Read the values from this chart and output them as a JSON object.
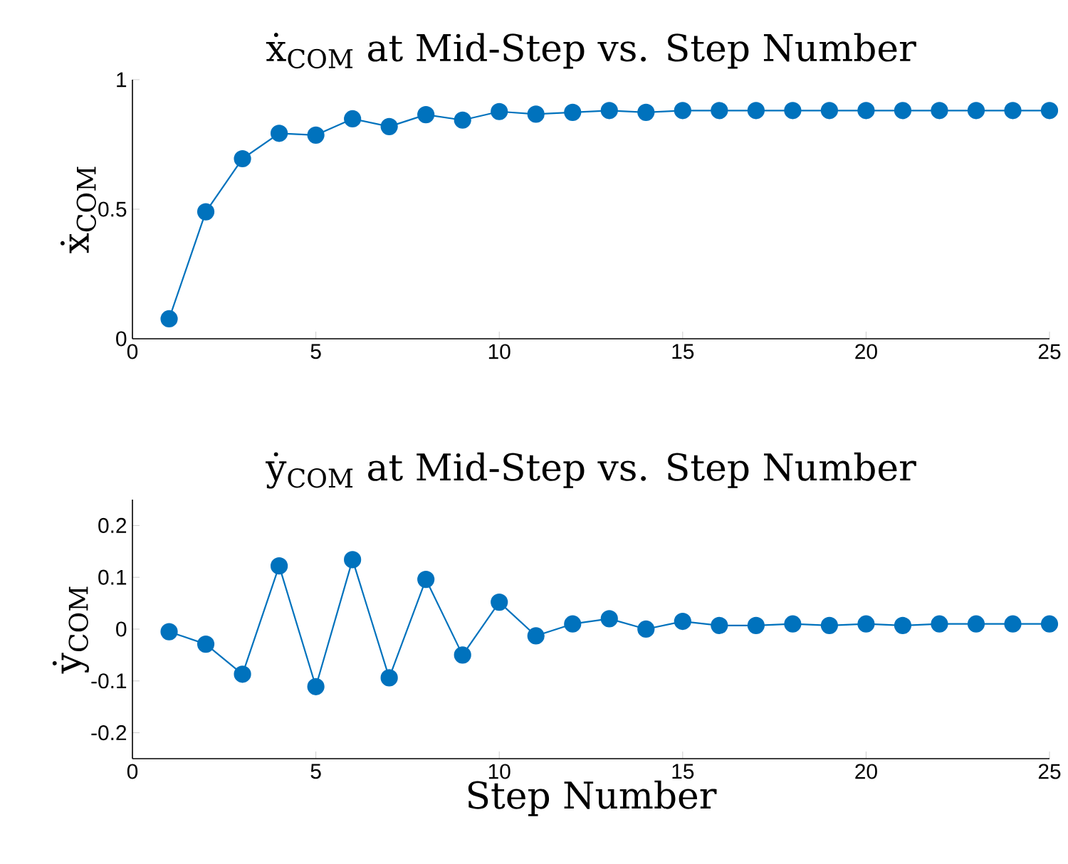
{
  "chart_data": [
    {
      "type": "line",
      "title": "ẋ$_{COM}$ at Mid-Step vs. Step Number",
      "ylabel": "ẋ$_{COM}$",
      "color": "#0072bd",
      "marker": "circle",
      "x": [
        1,
        2,
        3,
        4,
        5,
        6,
        7,
        8,
        9,
        10,
        11,
        12,
        13,
        14,
        15,
        16,
        17,
        18,
        19,
        20,
        21,
        22,
        23,
        24,
        25
      ],
      "values": [
        0.077,
        0.49,
        0.695,
        0.793,
        0.786,
        0.849,
        0.819,
        0.865,
        0.844,
        0.877,
        0.867,
        0.874,
        0.881,
        0.874,
        0.881,
        0.881,
        0.881,
        0.881,
        0.881,
        0.881,
        0.881,
        0.881,
        0.881,
        0.881,
        0.881
      ],
      "xlim": [
        0,
        25
      ],
      "xticks": [
        0,
        5,
        10,
        15,
        20,
        25
      ],
      "ylim": [
        0,
        1
      ],
      "yticks": [
        0,
        0.5,
        1
      ]
    },
    {
      "type": "line",
      "title": "ẏ$_{COM}$ at Mid-Step vs. Step Number",
      "ylabel": "ẏ$_{COM}$",
      "xlabel": "Step Number",
      "color": "#0072bd",
      "marker": "circle",
      "x": [
        1,
        2,
        3,
        4,
        5,
        6,
        7,
        8,
        9,
        10,
        11,
        12,
        13,
        14,
        15,
        16,
        17,
        18,
        19,
        20,
        21,
        22,
        23,
        24,
        25
      ],
      "values": [
        -0.005,
        -0.029,
        -0.087,
        0.122,
        -0.111,
        0.134,
        -0.094,
        0.096,
        -0.05,
        0.052,
        -0.013,
        0.01,
        0.02,
        0,
        0.015,
        0.007,
        0.007,
        0.01,
        0.007,
        0.01,
        0.007,
        0.01,
        0.01,
        0.01,
        0.01
      ],
      "xlim": [
        0,
        25
      ],
      "xticks": [
        0,
        5,
        10,
        15,
        20,
        25
      ],
      "ylim": [
        -0.25,
        0.25
      ],
      "yticks": [
        -0.2,
        -0.1,
        0,
        0.1,
        0.2
      ]
    }
  ]
}
